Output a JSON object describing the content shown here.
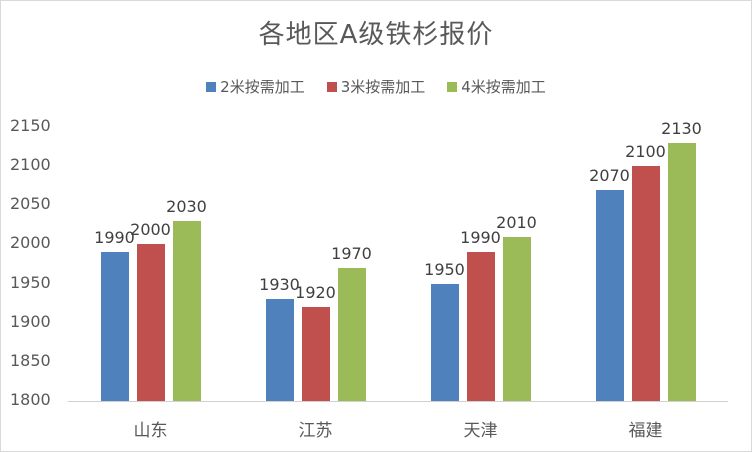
{
  "chart_data": {
    "type": "bar",
    "title": "各地区A级铁杉报价",
    "xlabel": "",
    "ylabel": "",
    "categories": [
      "山东",
      "江苏",
      "天津",
      "福建"
    ],
    "series": [
      {
        "name": "2米按需加工",
        "color": "#4f81bd",
        "values": [
          1990,
          1930,
          1950,
          2070
        ]
      },
      {
        "name": "3米按需加工",
        "color": "#c0504d",
        "values": [
          2000,
          1920,
          1990,
          2100
        ]
      },
      {
        "name": "4米按需加工",
        "color": "#9bbb59",
        "values": [
          2030,
          1970,
          2010,
          2130
        ]
      }
    ],
    "ylim": [
      1800,
      2150
    ],
    "yticks": [
      "2150",
      "2100",
      "2050",
      "2000",
      "1950",
      "1900",
      "1850",
      "1800"
    ],
    "grid": false,
    "legend_position": "top",
    "data_labels": true
  }
}
